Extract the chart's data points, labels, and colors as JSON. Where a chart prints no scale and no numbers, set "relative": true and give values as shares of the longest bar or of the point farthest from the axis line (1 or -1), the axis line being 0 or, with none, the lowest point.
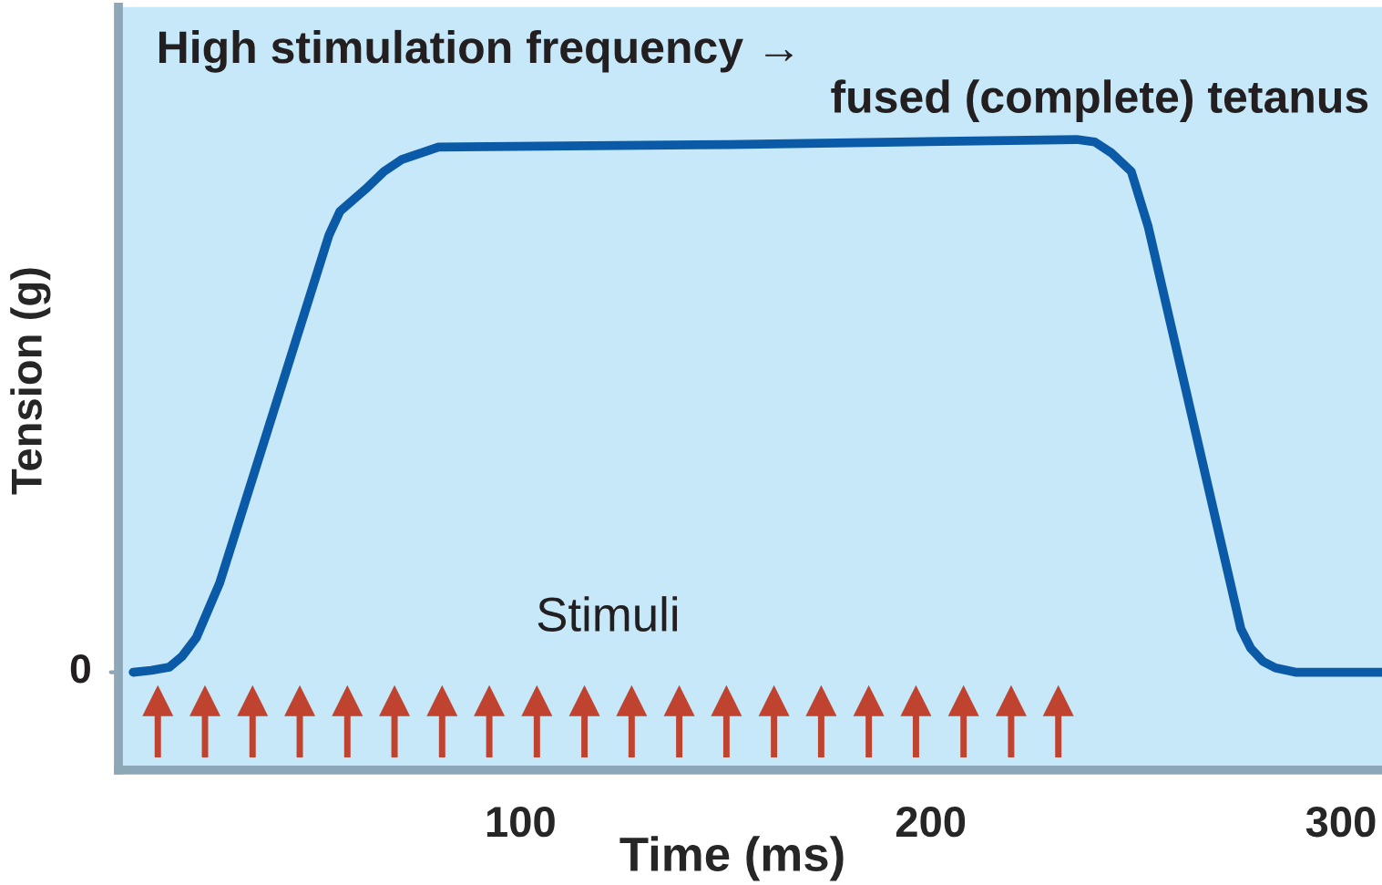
{
  "chart_data": {
    "type": "line",
    "relative": true,
    "title": "High stimulation frequency →",
    "subtitle": "fused (complete) tetanus",
    "xlabel": "Time (ms)",
    "ylabel": "Tension (g)",
    "xlim": [
      2,
      310
    ],
    "xticks": [
      100,
      200,
      300
    ],
    "grid": false,
    "legend": false,
    "marker": "none",
    "line_style": "solid",
    "annotations": [
      "0"
    ],
    "series": [
      {
        "type": "line",
        "color": "#0a5aa8",
        "x": [
          5.6,
          10,
          14.4,
          17.5,
          21,
          26.7,
          53.3,
          56,
          62.2,
          66.7,
          71,
          80,
          151,
          235.6,
          240,
          244,
          248.9,
          253,
          275.6,
          278,
          281,
          284,
          288.9,
          310
        ],
        "values": [
          0.155,
          0.158,
          0.163,
          0.18,
          0.21,
          0.297,
          0.848,
          0.886,
          0.921,
          0.949,
          0.968,
          0.988,
          0.992,
          1.0,
          0.996,
          0.979,
          0.949,
          0.862,
          0.224,
          0.193,
          0.172,
          0.162,
          0.155,
          0.155
        ]
      },
      {
        "type": "scatter",
        "name": "Stimuli",
        "color": "#c0432f",
        "marker": "triangle",
        "x": [
          11.6,
          23.1,
          34.7,
          46.2,
          57.8,
          69.3,
          80.9,
          92.4,
          104,
          115.6,
          127.1,
          138.7,
          150.2,
          161.8,
          173.3,
          184.9,
          196.4,
          208,
          219.6,
          231.1
        ],
        "values": [
          0.11,
          0.11,
          0.11,
          0.11,
          0.11,
          0.11,
          0.11,
          0.11,
          0.11,
          0.11,
          0.11,
          0.11,
          0.11,
          0.11,
          0.11,
          0.11,
          0.11,
          0.11,
          0.11,
          0.11
        ]
      }
    ]
  }
}
